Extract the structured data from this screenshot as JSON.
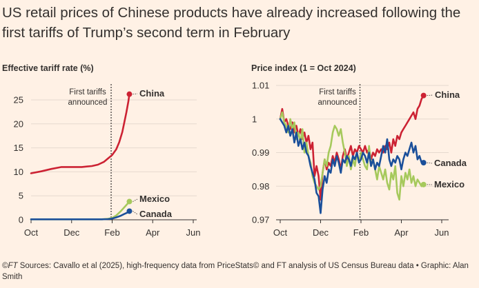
{
  "title": "US retail prices of Chinese products have already increased following the first tariffs of Trump’s second term in February",
  "footer": {
    "copyright": "©FT",
    "text": " Sources: Cavallo et al (2025), high-frequency data from PriceStats© and FT analysis of US Census Bureau data • Graphic: Alan Smith"
  },
  "colors": {
    "china": "#cc2233",
    "mexico": "#a6c95c",
    "canada": "#1a4f9a",
    "background": "#fff1e5",
    "gridline": "#e6d9ce",
    "axis": "#33302e"
  },
  "chart_data": [
    {
      "type": "line",
      "title": "Effective tariff rate (%)",
      "x_ticks": [
        "Oct",
        "Dec",
        "Feb",
        "Apr",
        "Jun"
      ],
      "x_tick_positions": [
        0,
        2,
        4,
        6,
        8
      ],
      "xlim": [
        0,
        8
      ],
      "ylim": [
        0,
        27
      ],
      "y_ticks": [
        0,
        5,
        10,
        15,
        20,
        25
      ],
      "y_tick_labels": [
        "0",
        "5",
        "10",
        "15",
        "20",
        "25"
      ],
      "annotation": {
        "lines": [
          "First tariffs",
          "announced"
        ],
        "x": 3.95
      },
      "series": [
        {
          "name": "China",
          "x": [
            0,
            0.5,
            1,
            1.5,
            2,
            2.5,
            3,
            3.3,
            3.6,
            3.8,
            4.0,
            4.2,
            4.35,
            4.5,
            4.6,
            4.7,
            4.8,
            4.85
          ],
          "values": [
            9.7,
            10.1,
            10.6,
            11.0,
            11.0,
            11.0,
            11.2,
            11.5,
            12.1,
            12.8,
            13.5,
            14.7,
            16.2,
            18.3,
            20.3,
            22.4,
            24.7,
            26.2
          ]
        },
        {
          "name": "Mexico",
          "x": [
            0,
            1,
            2,
            3,
            3.5,
            3.8,
            4.0,
            4.2,
            4.4,
            4.6,
            4.75,
            4.85
          ],
          "values": [
            0.1,
            0.1,
            0.1,
            0.1,
            0.1,
            0.2,
            0.4,
            0.9,
            1.7,
            2.6,
            3.3,
            3.8
          ]
        },
        {
          "name": "Canada",
          "x": [
            0,
            1,
            2,
            3,
            3.5,
            3.8,
            4.0,
            4.2,
            4.4,
            4.6,
            4.75,
            4.85
          ],
          "values": [
            0.1,
            0.1,
            0.1,
            0.1,
            0.1,
            0.15,
            0.25,
            0.5,
            0.8,
            1.2,
            1.5,
            1.8
          ]
        }
      ]
    },
    {
      "type": "line",
      "title": "Price index (1 = Oct 2024)",
      "x_ticks": [
        "Oct",
        "Dec",
        "Feb",
        "Apr",
        "Jun"
      ],
      "x_tick_positions": [
        0,
        2,
        4,
        6,
        8
      ],
      "xlim": [
        0,
        8
      ],
      "ylim": [
        0.97,
        1.01
      ],
      "y_ticks": [
        0.97,
        0.98,
        0.99,
        1,
        1.01
      ],
      "y_tick_labels": [
        "0.97",
        "0.98",
        "0.99",
        "1",
        "1.01"
      ],
      "annotation": {
        "lines": [
          "First tariffs",
          "announced"
        ],
        "x": 3.95
      },
      "series": [
        {
          "name": "China",
          "x": [
            0,
            0.1,
            0.2,
            0.3,
            0.4,
            0.5,
            0.6,
            0.7,
            0.8,
            0.9,
            1.0,
            1.1,
            1.2,
            1.3,
            1.4,
            1.5,
            1.6,
            1.7,
            1.8,
            1.9,
            2.0,
            2.1,
            2.2,
            2.3,
            2.4,
            2.5,
            2.6,
            2.7,
            2.8,
            2.9,
            3.0,
            3.1,
            3.2,
            3.3,
            3.4,
            3.5,
            3.6,
            3.7,
            3.8,
            3.9,
            4.0,
            4.1,
            4.2,
            4.3,
            4.4,
            4.5,
            4.6,
            4.7,
            4.8,
            4.9,
            5.0,
            5.1,
            5.2,
            5.3,
            5.4,
            5.5,
            5.6,
            5.7,
            5.8,
            5.9,
            6.0,
            6.1,
            6.2,
            6.3,
            6.4,
            6.5,
            6.6,
            6.7,
            6.8,
            6.9,
            7.0,
            7.1
          ],
          "values": [
            1.0,
            1.003,
            0.999,
            1.0,
            0.998,
            0.997,
            0.999,
            0.996,
            0.998,
            0.995,
            0.997,
            0.994,
            0.996,
            0.993,
            0.995,
            0.991,
            0.993,
            0.983,
            0.986,
            0.983,
            0.976,
            0.984,
            0.988,
            0.985,
            0.987,
            0.986,
            0.989,
            0.987,
            0.99,
            0.988,
            0.985,
            0.989,
            0.991,
            0.988,
            0.99,
            0.992,
            0.989,
            0.991,
            0.99,
            0.992,
            0.991,
            0.99,
            0.992,
            0.99,
            0.991,
            0.988,
            0.99,
            0.989,
            0.991,
            0.99,
            0.991,
            0.99,
            0.992,
            0.991,
            0.993,
            0.99,
            0.994,
            0.992,
            0.995,
            0.994,
            0.996,
            0.997,
            0.998,
            0.999,
            1.0,
            1.001,
            1.002,
            1.0,
            1.003,
            1.004,
            1.006,
            1.007
          ]
        },
        {
          "name": "Mexico",
          "x": [
            0,
            0.1,
            0.2,
            0.3,
            0.4,
            0.5,
            0.6,
            0.7,
            0.8,
            0.9,
            1.0,
            1.1,
            1.2,
            1.3,
            1.4,
            1.5,
            1.6,
            1.7,
            1.8,
            1.9,
            2.0,
            2.1,
            2.2,
            2.3,
            2.4,
            2.5,
            2.6,
            2.7,
            2.8,
            2.9,
            3.0,
            3.1,
            3.2,
            3.3,
            3.4,
            3.5,
            3.6,
            3.7,
            3.8,
            3.9,
            4.0,
            4.1,
            4.2,
            4.3,
            4.4,
            4.5,
            4.6,
            4.7,
            4.8,
            4.9,
            5.0,
            5.1,
            5.2,
            5.3,
            5.4,
            5.5,
            5.6,
            5.7,
            5.8,
            5.9,
            6.0,
            6.1,
            6.2,
            6.3,
            6.4,
            6.5,
            6.6,
            6.7,
            6.8,
            6.9,
            7.0,
            7.1
          ],
          "values": [
            1.0,
            1.002,
            0.999,
            0.998,
            0.996,
            1.0,
            0.997,
            0.999,
            0.994,
            0.996,
            0.993,
            0.997,
            0.99,
            0.993,
            0.989,
            0.987,
            0.983,
            0.981,
            0.98,
            0.979,
            0.98,
            0.984,
            0.988,
            0.986,
            0.99,
            0.992,
            0.996,
            0.998,
            0.997,
            0.995,
            0.997,
            0.993,
            0.99,
            0.986,
            0.989,
            0.985,
            0.988,
            0.986,
            0.99,
            0.987,
            0.99,
            0.988,
            0.986,
            0.985,
            0.992,
            0.986,
            0.988,
            0.985,
            0.982,
            0.986,
            0.984,
            0.982,
            0.985,
            0.981,
            0.979,
            0.984,
            0.982,
            0.986,
            0.978,
            0.976,
            0.983,
            0.98,
            0.984,
            0.982,
            0.985,
            0.981,
            0.983,
            0.98,
            0.982,
            0.981,
            0.98,
            0.9805
          ]
        },
        {
          "name": "Canada",
          "x": [
            0,
            0.1,
            0.2,
            0.3,
            0.4,
            0.5,
            0.6,
            0.7,
            0.8,
            0.9,
            1.0,
            1.1,
            1.2,
            1.3,
            1.4,
            1.5,
            1.6,
            1.7,
            1.8,
            1.9,
            2.0,
            2.1,
            2.2,
            2.3,
            2.4,
            2.5,
            2.6,
            2.7,
            2.8,
            2.9,
            3.0,
            3.1,
            3.2,
            3.3,
            3.4,
            3.5,
            3.6,
            3.7,
            3.8,
            3.9,
            4.0,
            4.1,
            4.2,
            4.3,
            4.4,
            4.5,
            4.6,
            4.7,
            4.8,
            4.9,
            5.0,
            5.1,
            5.2,
            5.3,
            5.4,
            5.5,
            5.6,
            5.7,
            5.8,
            5.9,
            6.0,
            6.1,
            6.2,
            6.3,
            6.4,
            6.5,
            6.6,
            6.7,
            6.8,
            6.9,
            7.0,
            7.1
          ],
          "values": [
            1.0,
            0.999,
            0.998,
            0.996,
            0.998,
            0.995,
            0.997,
            0.993,
            0.996,
            0.992,
            0.994,
            0.991,
            0.993,
            0.99,
            0.989,
            0.986,
            0.984,
            0.982,
            0.978,
            0.977,
            0.972,
            0.979,
            0.983,
            0.981,
            0.985,
            0.984,
            0.988,
            0.986,
            0.989,
            0.987,
            0.984,
            0.988,
            0.987,
            0.989,
            0.988,
            0.986,
            0.989,
            0.988,
            0.99,
            0.987,
            0.988,
            0.99,
            0.989,
            0.987,
            0.99,
            0.986,
            0.988,
            0.985,
            0.987,
            0.986,
            0.989,
            0.992,
            0.99,
            0.994,
            0.988,
            0.986,
            0.988,
            0.987,
            0.989,
            0.988,
            0.985,
            0.988,
            0.99,
            0.989,
            0.991,
            0.993,
            0.99,
            0.992,
            0.988,
            0.989,
            0.987,
            0.987
          ]
        }
      ]
    }
  ]
}
